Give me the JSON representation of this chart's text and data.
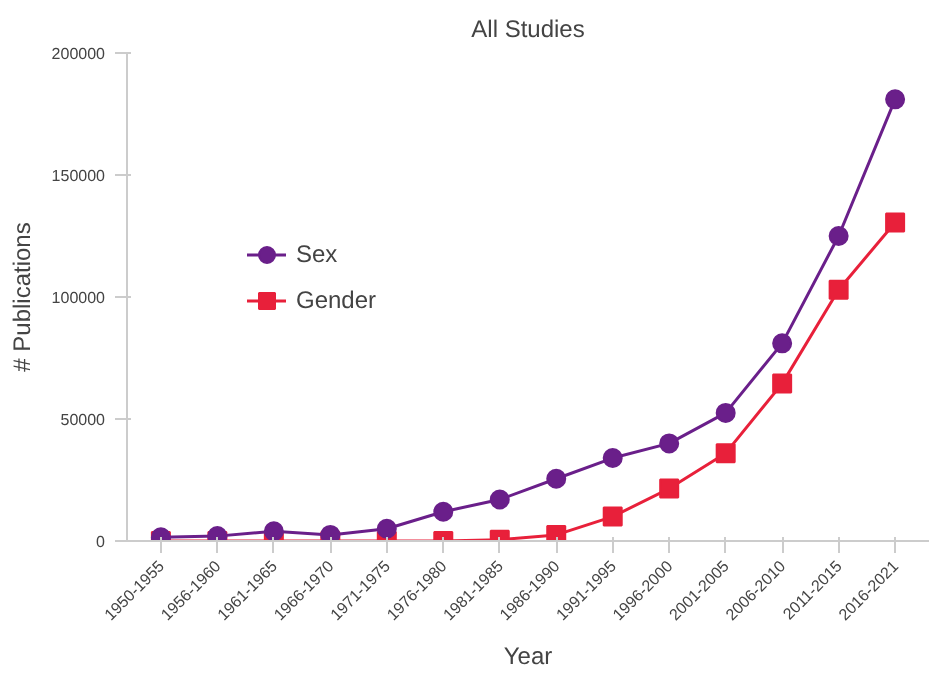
{
  "chart_data": {
    "type": "line",
    "title": "All Studies",
    "xlabel": "Year",
    "ylabel": "# Publications",
    "categories": [
      "1950-1955",
      "1956-1960",
      "1961-1965",
      "1966-1970",
      "1971-1975",
      "1976-1980",
      "1981-1985",
      "1986-1990",
      "1991-1995",
      "1996-2000",
      "2001-2005",
      "2006-2010",
      "2011-2015",
      "2016-2021"
    ],
    "series": [
      {
        "name": "Sex",
        "color": "#6a1f8a",
        "marker": "circle",
        "values": [
          1500,
          2000,
          4000,
          2500,
          5000,
          12000,
          17000,
          25500,
          34000,
          40000,
          52500,
          81000,
          125000,
          181000
        ]
      },
      {
        "name": "Gender",
        "color": "#e8203a",
        "marker": "square",
        "values": [
          0,
          0,
          0,
          0,
          0,
          0,
          500,
          2500,
          10000,
          21500,
          36000,
          64500,
          103000,
          130500
        ]
      }
    ],
    "ylim": [
      0,
      200000
    ],
    "yticks": [
      0,
      50000,
      100000,
      150000,
      200000
    ],
    "grid": false,
    "legend": "left",
    "line_style": "solid"
  }
}
